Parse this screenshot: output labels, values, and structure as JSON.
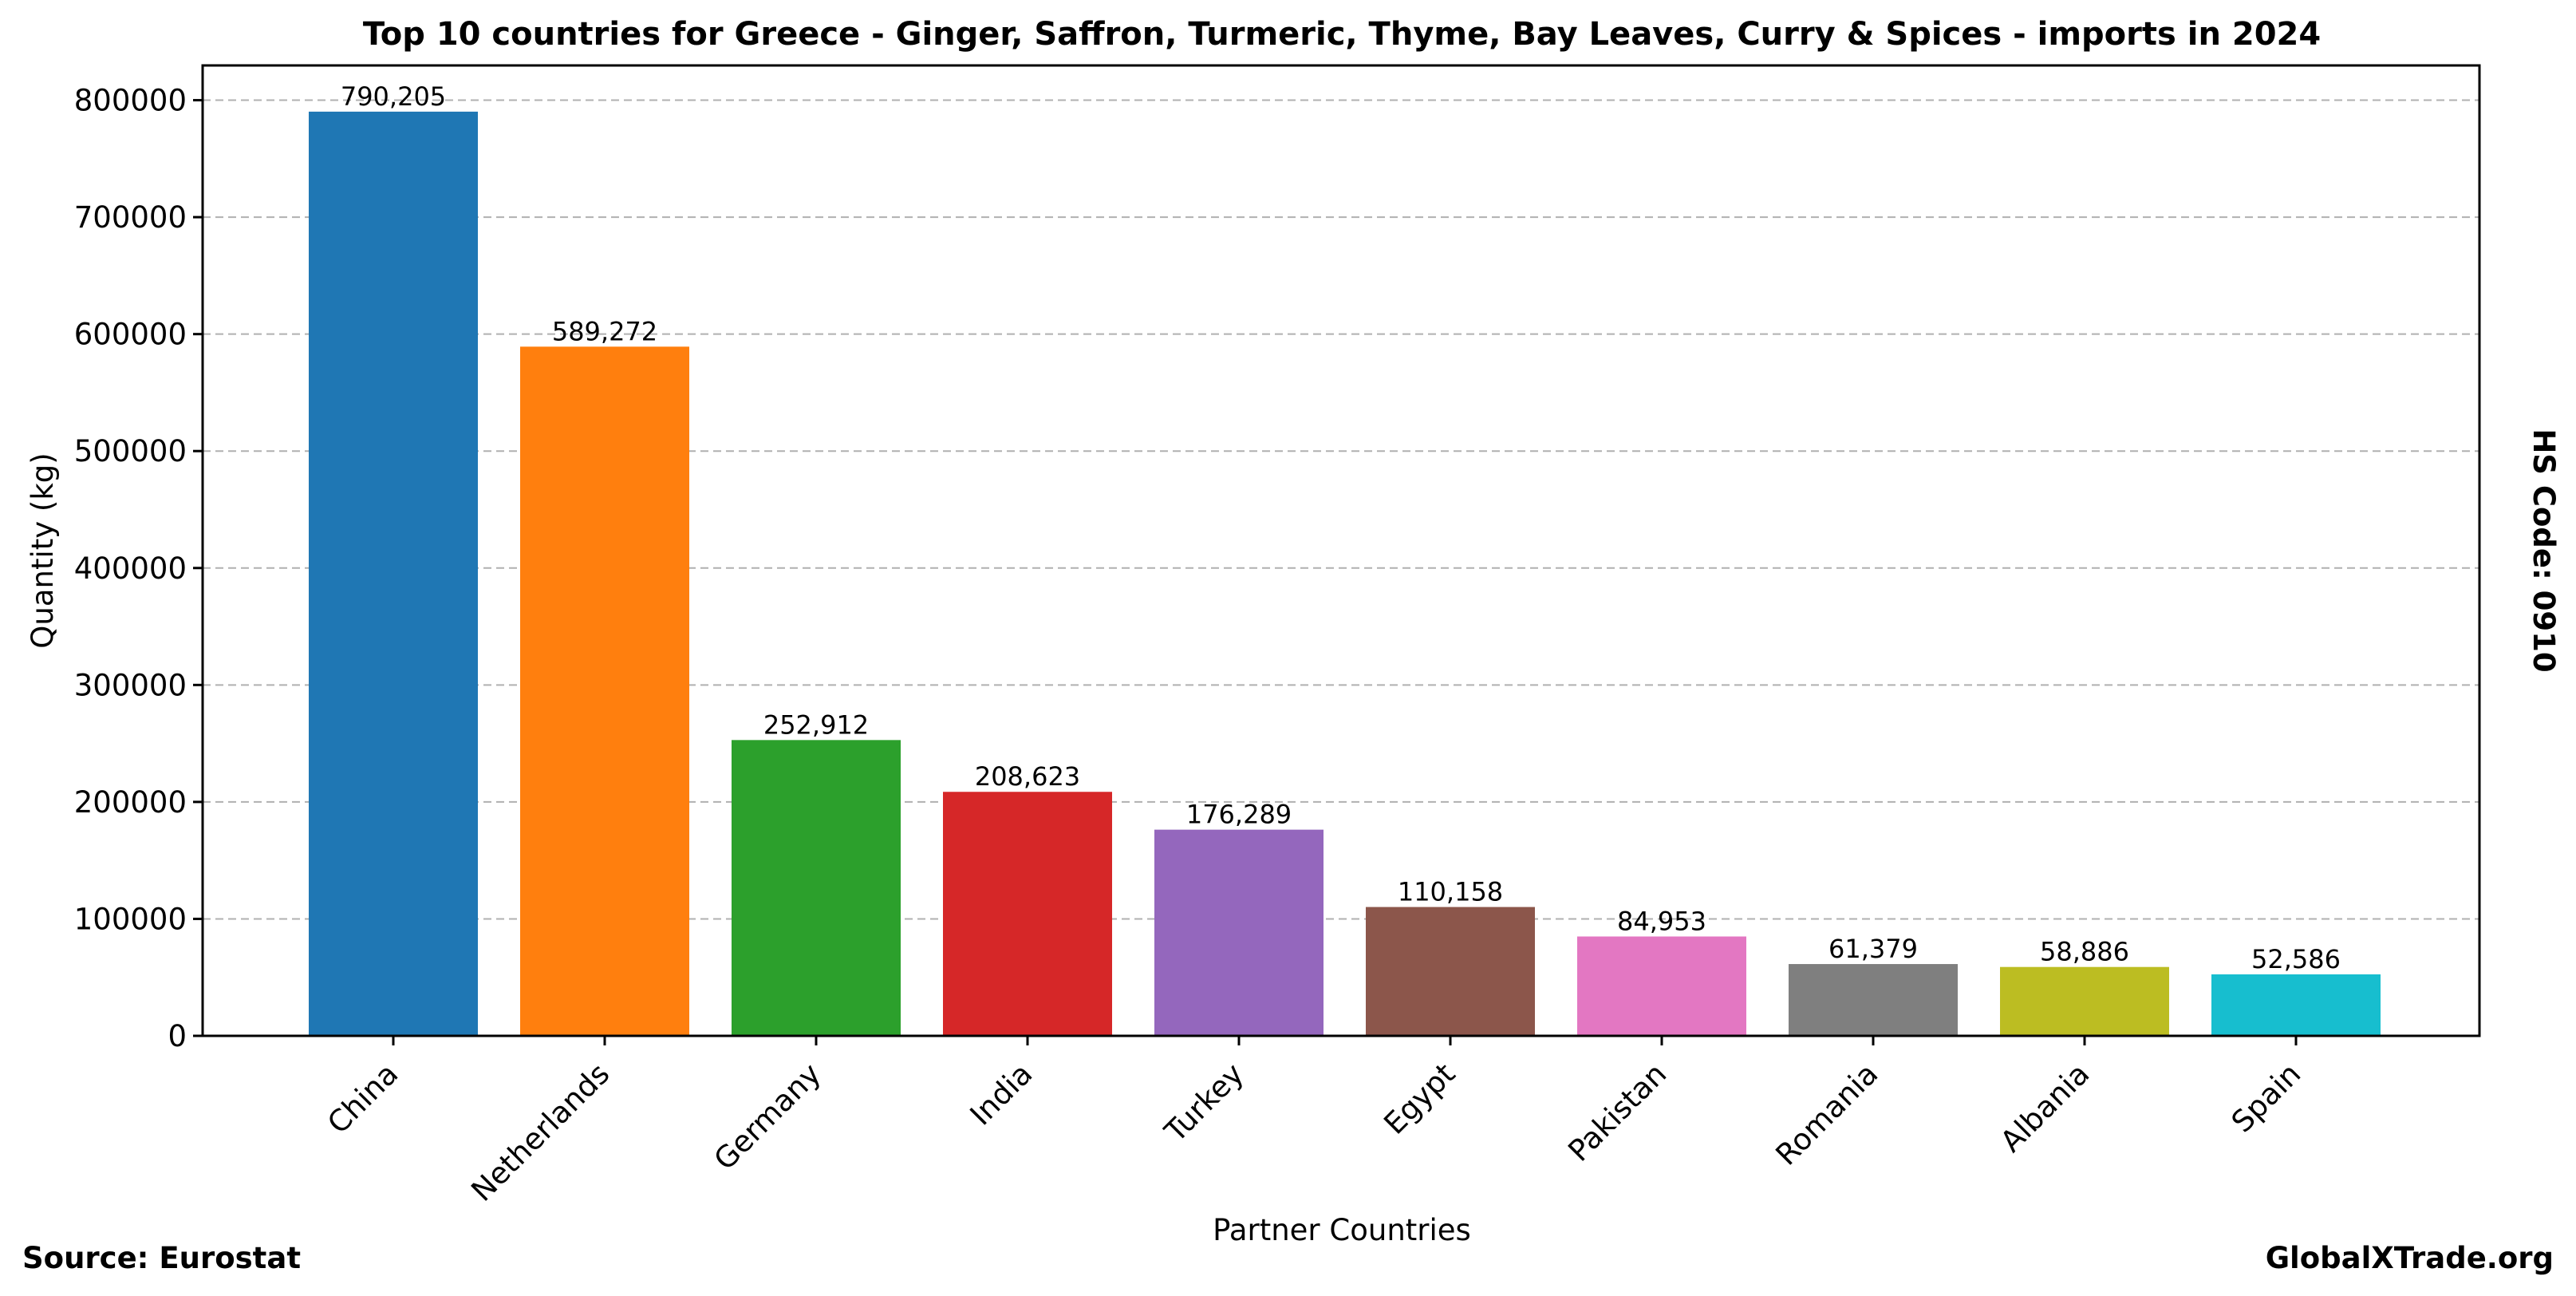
{
  "chart_data": {
    "type": "bar",
    "title": "Top 10 countries for Greece - Ginger, Saffron, Turmeric, Thyme, Bay Leaves, Curry & Spices - imports in 2024",
    "xlabel": "Partner Countries",
    "ylabel": "Quantity (kg)",
    "categories": [
      "China",
      "Netherlands",
      "Germany",
      "India",
      "Turkey",
      "Egypt",
      "Pakistan",
      "Romania",
      "Albania",
      "Spain"
    ],
    "values": [
      790205,
      589272,
      252912,
      208623,
      176289,
      110158,
      84953,
      61379,
      58886,
      52586
    ],
    "value_labels": [
      "790,205",
      "589,272",
      "252,912",
      "208,623",
      "176,289",
      "110,158",
      "84,953",
      "61,379",
      "58,886",
      "52,586"
    ],
    "colors": [
      "#1f77b4",
      "#ff7f0e",
      "#2ca02c",
      "#d62728",
      "#9467bd",
      "#8c564b",
      "#e377c2",
      "#7f7f7f",
      "#bcbd22",
      "#17becf"
    ],
    "yticks": [
      0,
      100000,
      200000,
      300000,
      400000,
      500000,
      600000,
      700000,
      800000
    ],
    "ytick_labels": [
      "0",
      "100000",
      "200000",
      "300000",
      "400000",
      "500000",
      "600000",
      "700000",
      "800000"
    ],
    "ylim": [
      0,
      829715
    ],
    "grid": "horizontal-dashed",
    "legend": "none"
  },
  "side_label": "HS Code: 0910",
  "source": "Source: Eurostat",
  "brand": "GlobalXTrade.org"
}
